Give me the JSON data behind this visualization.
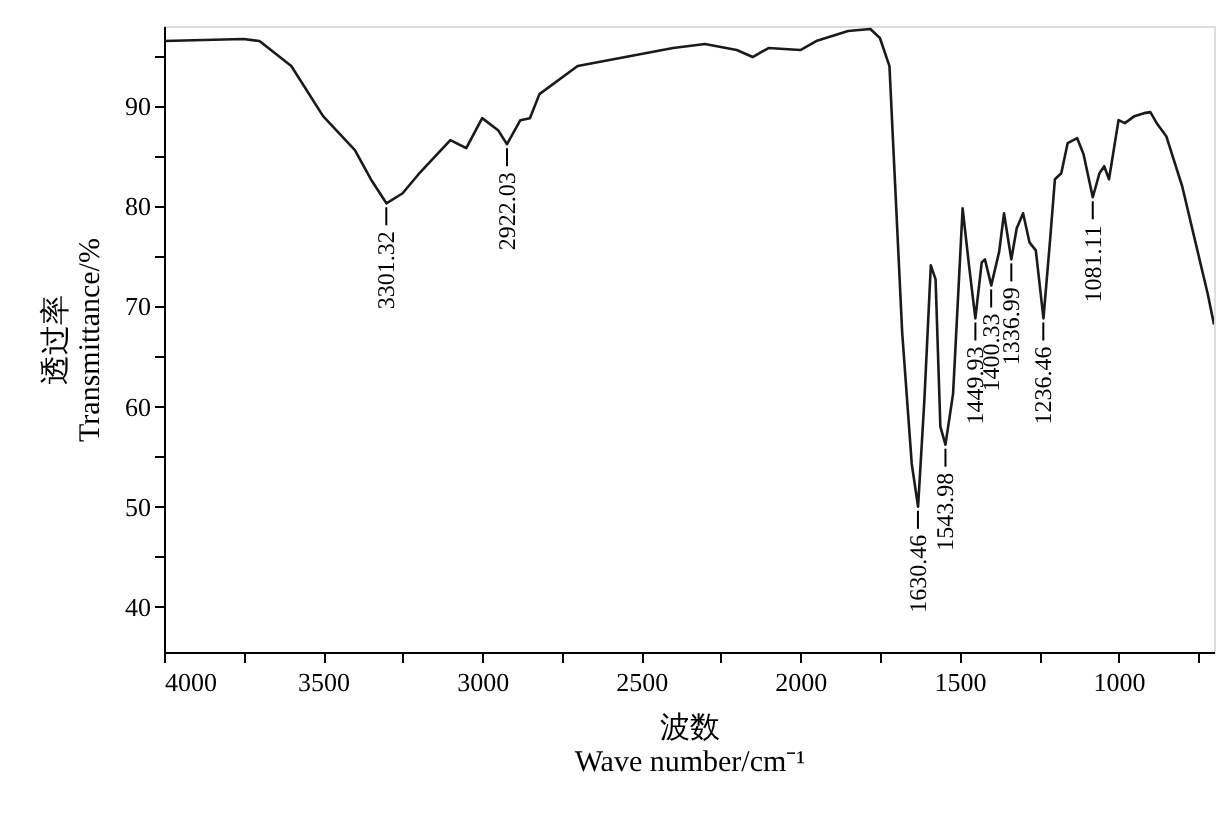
{
  "chart_data": {
    "type": "line",
    "xlabel": "波数\nWave number/cm⁻¹",
    "ylabel": "透过率\nTransmittance/%",
    "xlim": [
      4000,
      700
    ],
    "ylim": [
      35.5,
      98
    ],
    "xticks": [
      4000,
      {
        "value": 3750,
        "label": null
      },
      3500,
      {
        "value": 3250,
        "label": null
      },
      3000,
      {
        "value": 2750,
        "label": null
      },
      2500,
      {
        "value": 2250,
        "label": null
      },
      2000,
      {
        "value": 1750,
        "label": null
      },
      1500,
      {
        "value": 1250,
        "label": null
      },
      1000,
      {
        "value": 750,
        "label": null
      }
    ],
    "yticks": [
      40,
      {
        "value": 45,
        "label": null
      },
      50,
      {
        "value": 55,
        "label": null
      },
      60,
      {
        "value": 65,
        "label": null
      },
      70,
      {
        "value": 75,
        "label": null
      },
      80,
      {
        "value": 85,
        "label": null
      },
      90,
      {
        "value": 95,
        "label": null
      }
    ],
    "grid": false,
    "marker": "none",
    "line_style": "solid",
    "series": [
      {
        "color": "#1a1a1a",
        "x": [
          4000,
          3750,
          3700,
          3600,
          3500,
          3400,
          3350,
          3301,
          3250,
          3200,
          3100,
          3050,
          3000,
          2950,
          2922,
          2880,
          2850,
          2820,
          2700,
          2500,
          2400,
          2300,
          2200,
          2150,
          2100,
          2000,
          1950,
          1850,
          1780,
          1750,
          1720,
          1700,
          1680,
          1650,
          1630,
          1610,
          1590,
          1575,
          1560,
          1544,
          1520,
          1490,
          1470,
          1450,
          1430,
          1420,
          1400,
          1375,
          1360,
          1337,
          1320,
          1300,
          1280,
          1260,
          1236,
          1215,
          1200,
          1180,
          1160,
          1130,
          1110,
          1081,
          1060,
          1045,
          1030,
          1000,
          980,
          950,
          920,
          900,
          880,
          850,
          800,
          750,
          720,
          700
        ],
        "values": [
          96.5,
          96.7,
          96.5,
          94,
          89,
          85.6,
          82.7,
          80.3,
          81.3,
          83.2,
          86.6,
          85.8,
          88.8,
          87.6,
          86.2,
          88.6,
          88.8,
          91.2,
          94,
          95.2,
          95.8,
          96.2,
          95.6,
          94.9,
          95.8,
          95.6,
          96.5,
          97.5,
          97.7,
          96.8,
          94,
          80.7,
          67.4,
          54.3,
          50,
          60.8,
          74.1,
          72.7,
          58,
          56.2,
          61.3,
          79.8,
          74.1,
          68.8,
          74.4,
          74.7,
          72.1,
          75.5,
          79.3,
          74.7,
          77.8,
          79.3,
          76.4,
          75.6,
          68.8,
          76.7,
          82.7,
          83.3,
          86.3,
          86.8,
          85.2,
          80.9,
          83.3,
          84,
          82.7,
          88.6,
          88.3,
          89,
          89.3,
          89.4,
          88.3,
          87,
          82,
          75.3,
          71.3,
          68.2
        ]
      }
    ],
    "annotations": [
      {
        "text": "3301.32",
        "x": 3301.32,
        "y": 80.3
      },
      {
        "text": "2922.03",
        "x": 2922.03,
        "y": 86.2
      },
      {
        "text": "1630.46",
        "x": 1630.46,
        "y": 50
      },
      {
        "text": "1543.98",
        "x": 1543.98,
        "y": 56.2
      },
      {
        "text": "1449.93",
        "x": 1449.93,
        "y": 68.8
      },
      {
        "text": "1400.33",
        "x": 1400.33,
        "y": 72.1
      },
      {
        "text": "1336.99",
        "x": 1336.99,
        "y": 74.7
      },
      {
        "text": "1236.46",
        "x": 1236.46,
        "y": 68.8
      },
      {
        "text": "1081.11",
        "x": 1081.11,
        "y": 80.9
      }
    ]
  }
}
